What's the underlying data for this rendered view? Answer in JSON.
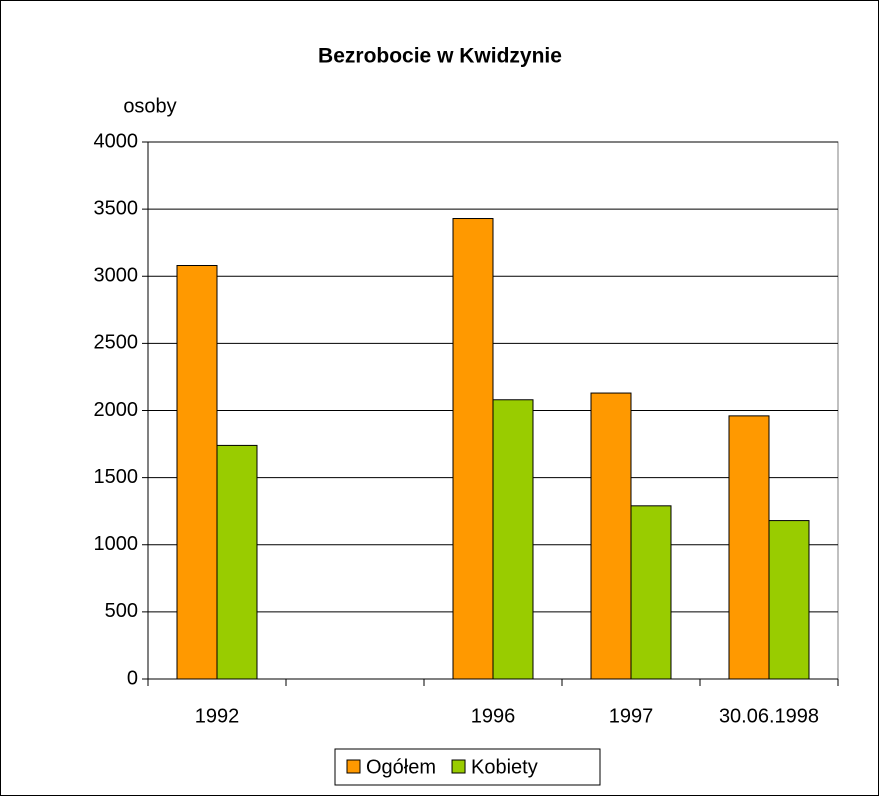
{
  "chart_data": {
    "type": "bar",
    "title": "Bezrobocie w Kwidzynie",
    "y_label": "osoby",
    "categories": [
      "1992",
      null,
      "1996",
      "1997",
      "30.06.1998"
    ],
    "series": [
      {
        "name": "Ogółem",
        "color": "#ff9900",
        "values": [
          3080,
          null,
          3430,
          2130,
          1960
        ]
      },
      {
        "name": "Kobiety",
        "color": "#99cc00",
        "values": [
          1740,
          null,
          2080,
          1290,
          1180
        ]
      }
    ],
    "ylim": [
      0,
      4000
    ],
    "yticks": [
      0,
      500,
      1000,
      1500,
      2000,
      2500,
      3000,
      3500,
      4000
    ],
    "grid": true,
    "legend": "bottom"
  }
}
